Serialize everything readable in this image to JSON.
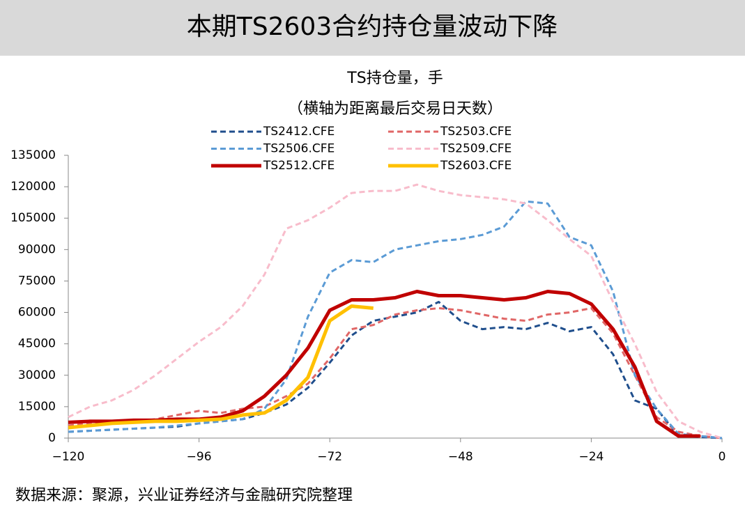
{
  "header": {
    "title": "本期TS2603合约持仓量波动下降"
  },
  "chart_data": {
    "type": "line",
    "title": "TS持仓量，手",
    "subtitle": "（横轴为距离最后交易日天数）",
    "x": [
      -120,
      -116,
      -112,
      -108,
      -104,
      -100,
      -96,
      -92,
      -88,
      -84,
      -80,
      -76,
      -72,
      -68,
      -64,
      -60,
      -56,
      -52,
      -48,
      -44,
      -40,
      -36,
      -32,
      -28,
      -24,
      -20,
      -16,
      -12,
      -8,
      -4,
      0
    ],
    "xlim": [
      -120,
      0
    ],
    "xticks": [
      {
        "value": -120,
        "label": "−120"
      },
      {
        "value": -96,
        "label": "−96"
      },
      {
        "value": -72,
        "label": "−72"
      },
      {
        "value": -48,
        "label": "−48"
      },
      {
        "value": -24,
        "label": "−24"
      },
      0
    ],
    "ylim": [
      0,
      135000
    ],
    "yticks": [
      0,
      15000,
      30000,
      45000,
      60000,
      75000,
      90000,
      105000,
      120000,
      135000
    ],
    "series": [
      {
        "name": "TS2412.CFE",
        "color": "#1f4e8c",
        "style": "dashed",
        "values": [
          3000,
          3500,
          4000,
          4500,
          5000,
          5500,
          7000,
          8000,
          9000,
          12000,
          16000,
          24000,
          36000,
          49000,
          56000,
          58000,
          60000,
          65000,
          56000,
          52000,
          53000,
          52000,
          55000,
          51000,
          53000,
          40000,
          18000,
          14000,
          1000,
          500,
          0
        ]
      },
      {
        "name": "TS2503.CFE",
        "color": "#e06666",
        "style": "dashed",
        "values": [
          6000,
          7000,
          7500,
          8000,
          9000,
          11000,
          13000,
          12000,
          14000,
          15000,
          20000,
          26000,
          38000,
          52000,
          54000,
          59000,
          61000,
          62000,
          61000,
          59000,
          57000,
          56000,
          59000,
          60000,
          62000,
          50000,
          30000,
          10000,
          3000,
          1000,
          0
        ]
      },
      {
        "name": "TS2506.CFE",
        "color": "#5b9bd5",
        "style": "dashed",
        "values": [
          3000,
          3500,
          4000,
          4500,
          5000,
          6000,
          7000,
          8000,
          9000,
          14000,
          28000,
          58000,
          79000,
          85000,
          84000,
          90000,
          92000,
          94000,
          95000,
          97000,
          101000,
          113000,
          112000,
          96000,
          92000,
          70000,
          30000,
          14000,
          2000,
          1000,
          0
        ]
      },
      {
        "name": "TS2509.CFE",
        "color": "#f8bccb",
        "style": "dashed",
        "values": [
          10000,
          15000,
          18000,
          23000,
          30000,
          38000,
          46000,
          53000,
          63000,
          78000,
          100000,
          104000,
          110000,
          117000,
          118000,
          118000,
          121000,
          118000,
          116000,
          115000,
          114000,
          112000,
          104000,
          95000,
          87000,
          65000,
          45000,
          22000,
          8000,
          3000,
          0
        ]
      },
      {
        "name": "TS2512.CFE",
        "color": "#c00000",
        "style": "solid",
        "values": [
          7500,
          8000,
          8000,
          8500,
          8500,
          9000,
          9000,
          10000,
          13000,
          20000,
          30000,
          43000,
          61000,
          66000,
          66000,
          67000,
          70000,
          68000,
          68000,
          67000,
          66000,
          67000,
          70000,
          69000,
          64000,
          52000,
          34000,
          8000,
          1000,
          1000,
          null
        ]
      },
      {
        "name": "TS2603.CFE",
        "color": "#ffc000",
        "style": "solid",
        "values": [
          5000,
          6000,
          7000,
          7500,
          8000,
          8000,
          8500,
          9000,
          11000,
          12000,
          18000,
          29000,
          56000,
          63000,
          62000,
          null,
          null,
          null,
          null,
          null,
          null,
          null,
          null,
          null,
          null,
          null,
          null,
          null,
          null,
          null,
          null
        ]
      }
    ]
  },
  "source": "数据来源：聚源，兴业证券经济与金融研究院整理"
}
